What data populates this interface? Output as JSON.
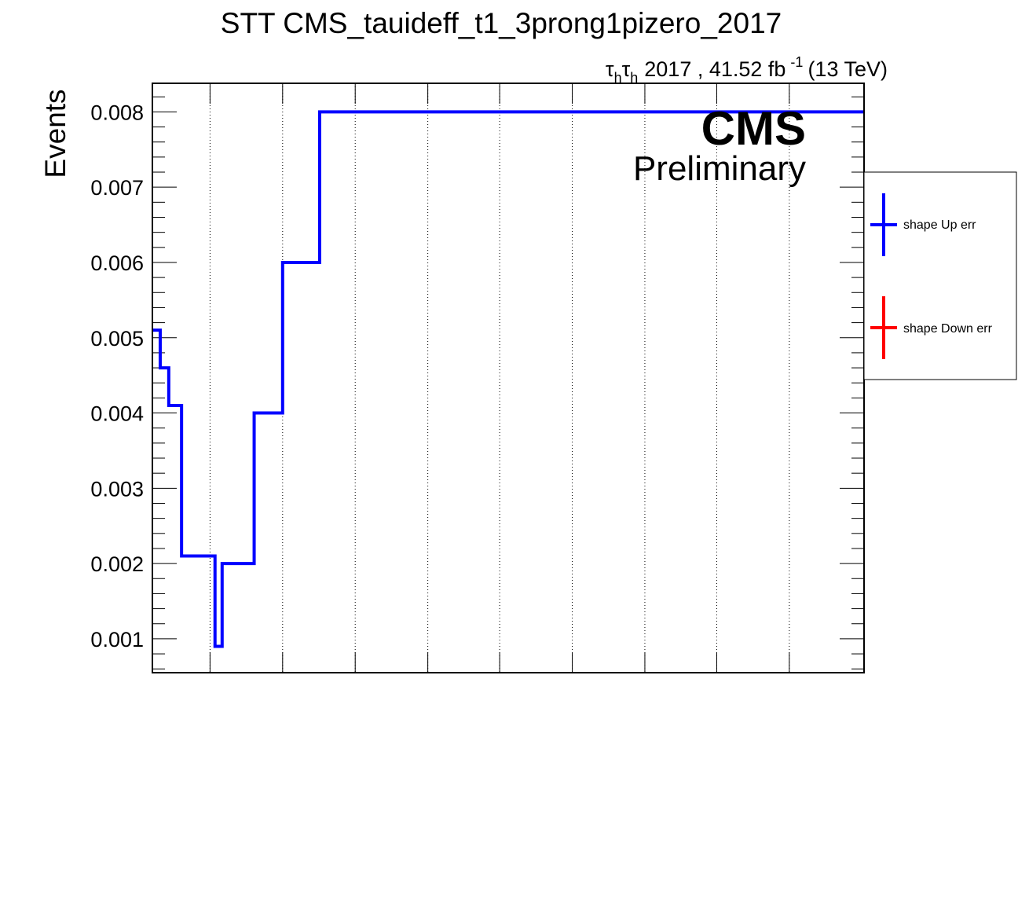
{
  "chart_data": {
    "type": "line",
    "title": "STT CMS_tauideff_t1_3prong1pizero_2017",
    "ylabel": "Events",
    "xlabel": "",
    "lumi": {
      "channel_prefix": "τ",
      "channel_sub": "h",
      "text_mid": "2017 , 41.52 fb",
      "sup": "-1",
      "text_end": "(13 TeV)"
    },
    "cms_label": "CMS",
    "extra_label": "Preliminary",
    "ylim": [
      0.00055,
      0.00838
    ],
    "y_ticks": [
      0.001,
      0.002,
      0.003,
      0.004,
      0.005,
      0.006,
      0.007,
      0.008
    ],
    "y_tick_labels": [
      "0.001",
      "0.002",
      "0.003",
      "0.004",
      "0.005",
      "0.006",
      "0.007",
      "0.008"
    ],
    "xlim": [
      0,
      100
    ],
    "x_gridlines": [
      8.1,
      18.3,
      28.5,
      38.7,
      48.8,
      59,
      69.2,
      79.3,
      89.5
    ],
    "grid": "vertical-dotted",
    "legend_position": "right",
    "series": [
      {
        "name": "shape Up err",
        "color": "#0000ff",
        "edges": [
          0,
          1.1,
          2.3,
          4.1,
          8.8,
          9.8,
          14.3,
          18.3,
          23.5,
          100
        ],
        "values": [
          0.0051,
          0.0046,
          0.0041,
          0.0021,
          0.0009,
          0.002,
          0.004,
          0.006,
          0.008
        ]
      },
      {
        "name": "shape Down err",
        "color": "#ff0000",
        "edges": [],
        "values": []
      }
    ]
  }
}
